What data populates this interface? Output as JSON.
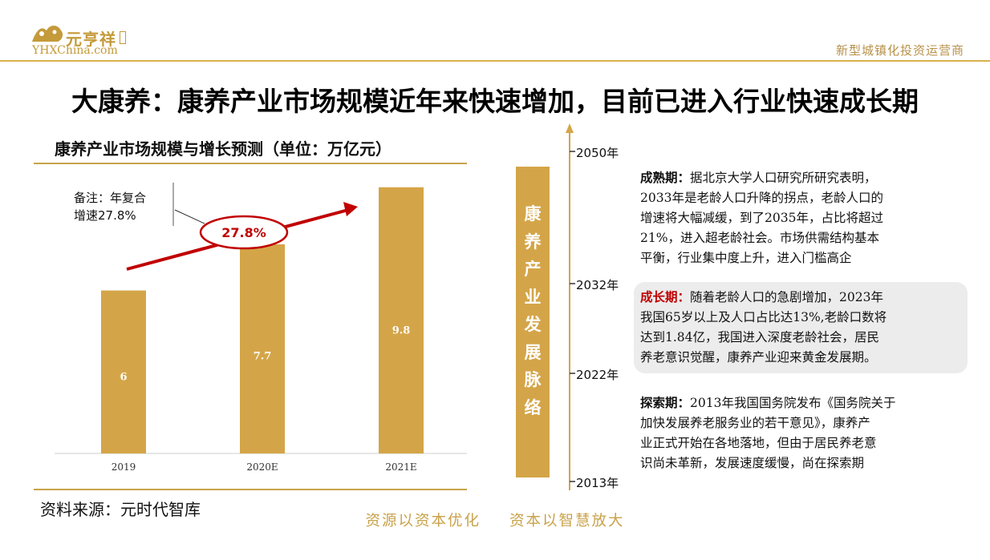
{
  "header": {
    "logo_text": "元亨祥",
    "logo_url": "YHXChina.com",
    "tagline": "新型城镇化投资运营商"
  },
  "title": "大康养：康养产业市场规模近年来快速增加，目前已进入行业快速成长期",
  "chart": {
    "title": "康养产业市场规模与增长预测（单位：万亿元）",
    "note_line1": "备注：年复合",
    "note_line2": "增速27.8%",
    "growth_label": "27.8%",
    "source": "资料来源：元时代智库"
  },
  "chart_data": {
    "type": "bar",
    "categories": [
      "2019",
      "2020E",
      "2021E"
    ],
    "values": [
      6,
      7.7,
      9.8
    ],
    "data_labels": [
      "6",
      "7.7",
      "9.8"
    ],
    "ylim": [
      0,
      10.5
    ],
    "color": "#d4a548"
  },
  "band": {
    "text": "康养产业发展脉络"
  },
  "timeline": {
    "years": [
      "2050年",
      "2032年",
      "2022年",
      "2013年"
    ]
  },
  "stages": [
    {
      "head": "成熟期：",
      "body": "据北京大学人口研究所研究表明，2033年是老龄人口升降的拐点，老龄人口的增速将大幅减缓，到了2035年，占比将超过21%，进入超老龄社会。市场供需结构基本平衡，行业集中度上升，进入门槛高企",
      "lines": [
        "成熟期：据北京大学人口研究所研究表明，",
        "2033年是老龄人口升降的拐点，老龄人口的",
        "增速将大幅减缓，到了2035年，占比将超过",
        "21%，进入超老龄社会。市场供需结构基本",
        "平衡，行业集中度上升，进入门槛高企"
      ]
    },
    {
      "head": "成长期：",
      "body": "随着老龄人口的急剧增加，2023年我国65岁以上及人口占比达13%,老龄口数将达到1.84亿，我国进入深度老龄社会，居民养老意识觉醒，康养产业迎来黄金发展期。",
      "lines": [
        "成长期：随着老龄人口的急剧增加，2023年",
        "我国65岁以上及人口占比达13%,老龄口数将",
        "达到1.84亿，我国进入深度老龄社会，居民",
        "养老意识觉醒，康养产业迎来黄金发展期。"
      ]
    },
    {
      "head": "探索期：",
      "body": "2013年我国国务院发布《国务院关于加快发展养老服务业的若干意见》，康养产业正式开始在各地落地，但由于居民养老意识尚未革新，发展速度缓慢，尚在探索期",
      "lines": [
        "探索期：2013年我国国务院发布《国务院关于",
        "加快发展养老服务业的若干意见》，康养产",
        "业正式开始在各地落地，但由于居民养老意",
        "识尚未革新，发展速度缓慢，尚在探索期"
      ]
    }
  ],
  "footer": {
    "left": "资源以资本优化",
    "right": "资本以智慧放大"
  },
  "colors": {
    "gold": "#d4a548",
    "accent_red": "#c00000",
    "stage_head_red": "#c00000"
  }
}
